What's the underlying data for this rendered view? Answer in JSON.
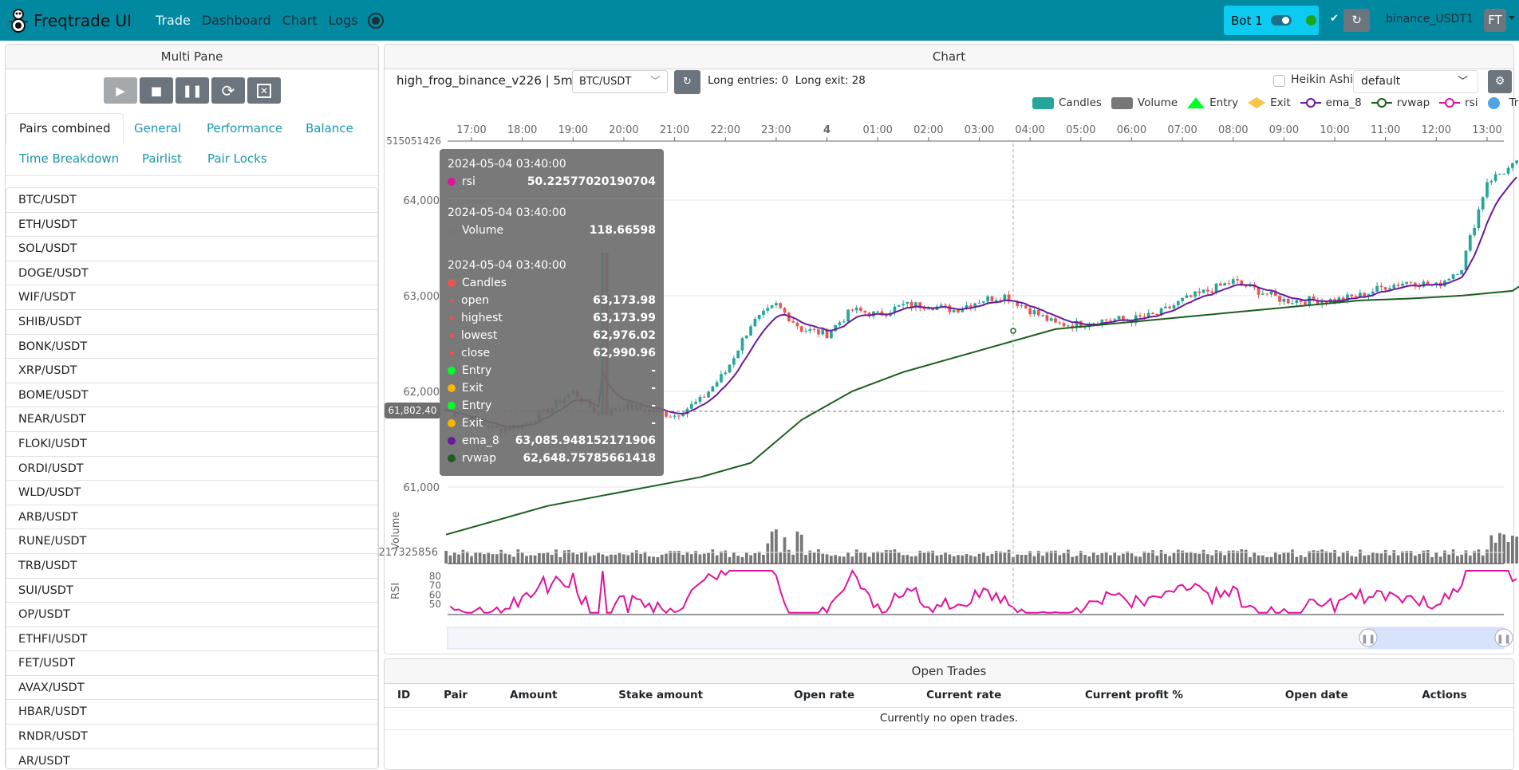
{
  "nav": {
    "brand": "Freqtrade UI",
    "links": [
      "Trade",
      "Dashboard",
      "Chart",
      "Logs"
    ],
    "active": "Trade",
    "bot_name": "Bot 1",
    "bot_online": true,
    "exchange": "binance_USDT1",
    "user_initials": "FT",
    "accent": "#0089a1"
  },
  "multi_pane": {
    "title": "Multi Pane",
    "controls": [
      "play-icon",
      "stop-icon",
      "pause-icon",
      "reload-icon",
      "force-exit-icon"
    ],
    "tabs": [
      "Pairs combined",
      "General",
      "Performance",
      "Balance",
      "Time Breakdown",
      "Pairlist",
      "Pair Locks"
    ],
    "active_tab": "Pairs combined",
    "pairs": [
      "BTC/USDT",
      "ETH/USDT",
      "SOL/USDT",
      "DOGE/USDT",
      "WIF/USDT",
      "SHIB/USDT",
      "BONK/USDT",
      "XRP/USDT",
      "BOME/USDT",
      "NEAR/USDT",
      "FLOKI/USDT",
      "ORDI/USDT",
      "WLD/USDT",
      "ARB/USDT",
      "RUNE/USDT",
      "TRB/USDT",
      "SUI/USDT",
      "OP/USDT",
      "ETHFI/USDT",
      "FET/USDT",
      "AVAX/USDT",
      "HBAR/USDT",
      "RNDR/USDT",
      "AR/USDT"
    ]
  },
  "chart": {
    "title": "Chart",
    "strategy": "high_frog_binance_v226 | 5m",
    "pair": "BTC/USDT",
    "signals": "Long entries: 0  Long exit: 28",
    "heikin_ashi_label": "Heikin Ashi",
    "heikin_ashi": false,
    "plot_config": "default",
    "legend": [
      {
        "name": "Candles",
        "color": "#26a69a"
      },
      {
        "name": "Volume",
        "color": "#777777"
      },
      {
        "name": "Entry",
        "color": "#00ff26"
      },
      {
        "name": "Exit",
        "color": "#f8c44a"
      },
      {
        "name": "ema_8",
        "color": "#6a1b9a"
      },
      {
        "name": "rvwap",
        "color": "#1b5e20"
      },
      {
        "name": "rsi",
        "color": "#e0129c"
      },
      {
        "name": "Trades",
        "color": "#4fa3e0"
      }
    ],
    "x_ticks": [
      "17:00",
      "18:00",
      "19:00",
      "20:00",
      "21:00",
      "22:00",
      "23:00",
      "4",
      "01:00",
      "02:00",
      "03:00",
      "04:00",
      "05:00",
      "06:00",
      "07:00",
      "08:00",
      "09:00",
      "10:00",
      "11:00",
      "12:00",
      "13:00"
    ],
    "y_ticks": [
      "64,000",
      "63,000",
      "62,000",
      "61,000"
    ],
    "y_top_label": "515051426",
    "volume_label": "Volume",
    "volume_tick": "217325856",
    "rsi_label": "RSI",
    "rsi_ticks": [
      "80",
      "70",
      "60",
      "50"
    ],
    "crosshair_price": "61,802.40",
    "price_hourly": {
      "start": "2024-05-03 16:30",
      "step_minutes": 30,
      "close": [
        61800,
        61700,
        61600,
        61650,
        61800,
        62000,
        61750,
        61850,
        61800,
        61750,
        61900,
        62200,
        62700,
        62900,
        62650,
        62600,
        62850,
        62800,
        62900,
        62900,
        62850,
        62950,
        63000,
        62850,
        62700,
        62700,
        62750,
        62750,
        62800,
        62950,
        63050,
        63150,
        63050,
        62950,
        62950,
        62950,
        63000,
        63100,
        63150,
        63100,
        63300,
        64200,
        64350
      ]
    },
    "rvwap_hourly": {
      "start": "2024-05-03 16:30",
      "step_minutes": 60,
      "values": [
        60500,
        60650,
        60800,
        60900,
        61000,
        61100,
        61250,
        61700,
        62000,
        62200,
        62350,
        62500,
        62650,
        62700,
        62750,
        62800,
        62850,
        62900,
        62950,
        62970,
        63000,
        63050,
        63400
      ]
    },
    "tooltip": {
      "rsi": {
        "date": "2024-05-04 03:40:00",
        "label": "rsi",
        "value": "50.22577020190704"
      },
      "volume": {
        "date": "2024-05-04 03:40:00",
        "label": "Volume",
        "value": "118.66598"
      },
      "candles": {
        "date": "2024-05-04 03:40:00",
        "label": "Candles",
        "rows": [
          {
            "label": "open",
            "value": "63,173.98"
          },
          {
            "label": "highest",
            "value": "63,173.99"
          },
          {
            "label": "lowest",
            "value": "62,976.02"
          },
          {
            "label": "close",
            "value": "62,990.96"
          }
        ]
      },
      "extra": [
        {
          "label": "Entry",
          "value": "-",
          "color": "#00ff26"
        },
        {
          "label": "Exit",
          "value": "-",
          "color": "#f8b500"
        },
        {
          "label": "Entry",
          "value": "-",
          "color": "#00ff26"
        },
        {
          "label": "Exit",
          "value": "-",
          "color": "#f8b500"
        },
        {
          "label": "ema_8",
          "value": "63,085.948152171906",
          "color": "#6a1b9a"
        },
        {
          "label": "rvwap",
          "value": "62,648.7578566141​8",
          "color": "#1b5e20"
        }
      ]
    }
  },
  "open_trades": {
    "title": "Open Trades",
    "columns": [
      "ID",
      "Pair",
      "Amount",
      "Stake amount",
      "Open rate",
      "Current rate",
      "Current profit %",
      "Open date",
      "Actions"
    ],
    "empty_text": "Currently no open trades."
  }
}
